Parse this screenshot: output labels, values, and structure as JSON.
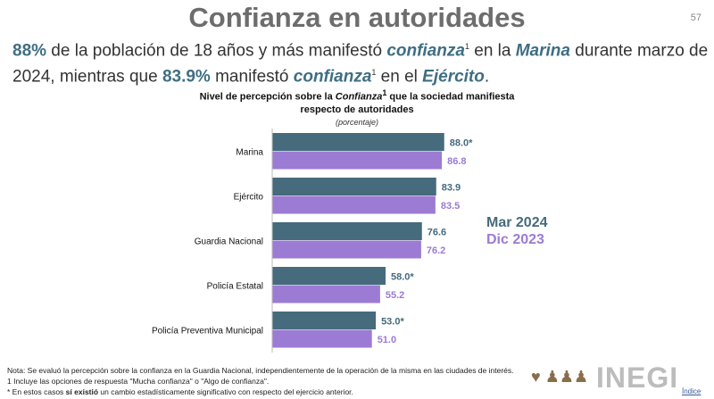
{
  "page": {
    "title": "Confianza en autoridades",
    "number": "57"
  },
  "lead": {
    "p1": "88%",
    "t1": " de la población de 18 años y más manifestó ",
    "w1": "confianza",
    "s1": "1",
    "t2": " en la ",
    "w2": "Marina",
    "t3": " durante marzo de 2024, mientras que ",
    "p2": "83.9%",
    "t4": " manifestó ",
    "w3": "confianza",
    "s2": "1",
    "t5": " en el ",
    "w4": "Ejército",
    "t6": "."
  },
  "chart_title": {
    "a": "Nivel de percepción sobre la ",
    "b": "Confianza",
    "c": "1",
    "d": " que la sociedad manifiesta respecto de autoridades",
    "unit": "(porcentaje)"
  },
  "colors": {
    "mar2024": "#456b7c",
    "dic2023": "#9b7bd3"
  },
  "chart_data": {
    "type": "bar",
    "orientation": "horizontal",
    "categories": [
      "Marina",
      "Ejército",
      "Guardia Nacional",
      "Policía Estatal",
      "Policía Preventiva Municipal"
    ],
    "series": [
      {
        "name": "Mar 2024",
        "values": [
          88.0,
          83.9,
          76.6,
          58.0,
          53.0
        ],
        "labels": [
          "88.0*",
          "83.9",
          "76.6",
          "58.0*",
          "53.0*"
        ]
      },
      {
        "name": "Dic 2023",
        "values": [
          86.8,
          83.5,
          76.2,
          55.2,
          51.0
        ],
        "labels": [
          "86.8",
          "83.5",
          "76.2",
          "55.2",
          "51.0"
        ]
      }
    ],
    "xlim": [
      0,
      100
    ],
    "legend": "right"
  },
  "notes": [
    "Nota: Se evaluó la percepción sobre la confianza en la Guardia Nacional, independientemente de la operación de la misma en las ciudades de interés.",
    "1 Incluye las opciones de respuesta \"Mucha confianza\" o \"Algo de confianza\".",
    "* En estos casos ",
    "sí existió",
    " un cambio estadísticamente significativo con respecto del ejercicio anterior."
  ],
  "footer": {
    "logo": "INEGI",
    "link": "Índice"
  }
}
